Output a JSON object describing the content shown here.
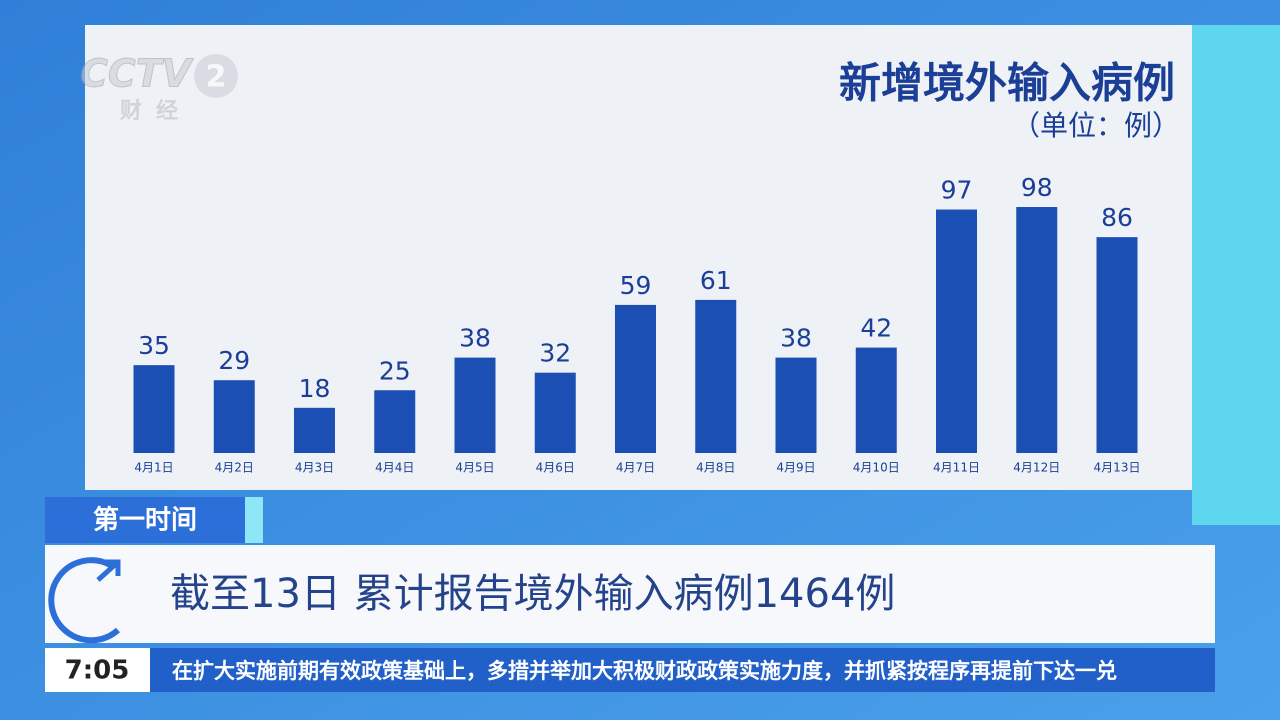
{
  "chart_data": {
    "type": "bar",
    "title": "新增境外输入病例",
    "subtitle": "（单位：例）",
    "categories": [
      "4月1日",
      "4月2日",
      "4月3日",
      "4月4日",
      "4月5日",
      "4月6日",
      "4月7日",
      "4月8日",
      "4月9日",
      "4月10日",
      "4月11日",
      "4月12日",
      "4月13日"
    ],
    "values": [
      35,
      29,
      18,
      25,
      38,
      32,
      59,
      61,
      38,
      42,
      97,
      98,
      86
    ],
    "color": "#1b4fb4"
  },
  "logo": {
    "brand": "CCTV",
    "channel": "2",
    "name": "财经"
  },
  "banner": {
    "tag": "第一时间",
    "headline": "截至13日 累计报告境外输入病例1464例"
  },
  "ticker": {
    "time": "7:05",
    "text": "在扩大实施前期有效政策基础上，多措并举加大积极财政政策实施力度，并抓紧按程序再提前下达一兑"
  }
}
